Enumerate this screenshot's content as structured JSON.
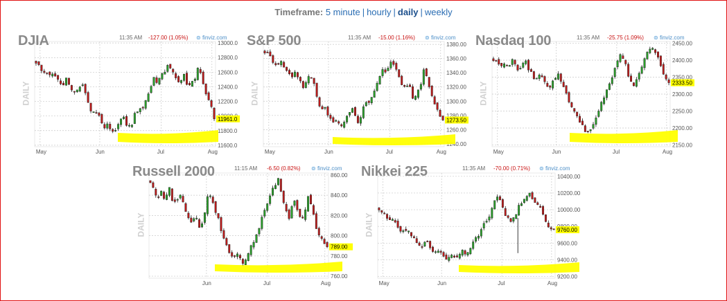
{
  "header": {
    "label": "Timeframe:",
    "options": [
      "5 minute",
      "hourly",
      "daily",
      "weekly"
    ],
    "active": "daily"
  },
  "colors": {
    "up": "#2aa52a",
    "down": "#c41a1a",
    "highlight": "#ffff00",
    "change": "#c81010",
    "brand": "#4d8fc7"
  },
  "panels": [
    {
      "title": "DJIA",
      "time": "11:35 AM",
      "change": "-127.00 (1.05%)",
      "brand": "finviz.com",
      "side": "DAILY",
      "last": "11961.0"
    },
    {
      "title": "S&P 500",
      "time": "11:35 AM",
      "change": "-15.00 (1.16%)",
      "brand": "finviz.com",
      "side": "DAILY",
      "last": "1273.50"
    },
    {
      "title": "Nasdaq 100",
      "time": "11:35 AM",
      "change": "-25.75 (1.09%)",
      "brand": "finviz.com",
      "side": "DAILY",
      "last": "2333.50"
    },
    {
      "title": "Russell 2000",
      "time": "11:15 AM",
      "change": "-6.50 (0.82%)",
      "brand": "finviz.com",
      "side": "DAILY",
      "last": "789.00"
    },
    {
      "title": "Nikkei 225",
      "time": "11:35 AM",
      "change": "-70.00 (0.71%)",
      "brand": "finviz.com",
      "side": "DAILY",
      "last": "9760.00"
    }
  ],
  "chart_data": [
    {
      "type": "candlestick",
      "title": "DJIA",
      "ylim": [
        11580,
        13020
      ],
      "yticks": [
        11600,
        11800,
        12000,
        12200,
        12400,
        12600,
        12800,
        13000
      ],
      "ytick_labels": [
        "11600.0",
        "11800.0",
        "12000.0",
        "12200.0",
        "12400.0",
        "12600.0",
        "12800.0",
        "13000.0"
      ],
      "months": [
        {
          "label": "May",
          "frac": 0.03
        },
        {
          "label": "Jun",
          "frac": 0.36
        },
        {
          "label": "Jul",
          "frac": 0.7
        },
        {
          "label": "Aug",
          "frac": 0.98
        }
      ],
      "n": 66,
      "last": 11961,
      "close_path": [
        12700,
        12670,
        12610,
        12560,
        12600,
        12550,
        12480,
        12430,
        12500,
        12410,
        12320,
        12380,
        12450,
        12330,
        12150,
        12030,
        12070,
        11940,
        11850,
        11900,
        11770,
        11800,
        11960,
        12010,
        11880,
        11820,
        12030,
        12060,
        12100,
        12230,
        12350,
        12520,
        12450,
        12590,
        12620,
        12710,
        12640,
        12490,
        12420,
        12560,
        12370,
        12460,
        12510,
        12690,
        12470,
        12290,
        12180,
        11961
      ]
    },
    {
      "type": "candlestick",
      "title": "S&P 500",
      "ylim": [
        1236,
        1384
      ],
      "yticks": [
        1240,
        1260,
        1280,
        1300,
        1320,
        1340,
        1360,
        1380
      ],
      "ytick_labels": [
        "1240.00",
        "1260.00",
        "1280.00",
        "1300.00",
        "1320.00",
        "1340.00",
        "1360.00",
        "1380.00"
      ],
      "months": [
        {
          "label": "May",
          "frac": 0.03
        },
        {
          "label": "Jun",
          "frac": 0.36
        },
        {
          "label": "Jul",
          "frac": 0.7
        },
        {
          "label": "Aug",
          "frac": 0.98
        }
      ],
      "n": 66,
      "last": 1273.5,
      "close_path": [
        1370,
        1366,
        1358,
        1352,
        1357,
        1350,
        1341,
        1334,
        1342,
        1333,
        1320,
        1326,
        1338,
        1324,
        1302,
        1288,
        1292,
        1278,
        1269,
        1274,
        1265,
        1268,
        1285,
        1290,
        1276,
        1270,
        1294,
        1298,
        1300,
        1315,
        1328,
        1348,
        1340,
        1356,
        1352,
        1342,
        1325,
        1318,
        1328,
        1303,
        1312,
        1320,
        1345,
        1330,
        1310,
        1295,
        1280,
        1273.5
      ]
    },
    {
      "type": "candlestick",
      "title": "Nasdaq 100",
      "ylim": [
        2145,
        2455
      ],
      "yticks": [
        2150,
        2200,
        2250,
        2300,
        2350,
        2400,
        2450
      ],
      "ytick_labels": [
        "2150.00",
        "2200.00",
        "2250.00",
        "2300.00",
        "2350.00",
        "2400.00",
        "2450.00"
      ],
      "months": [
        {
          "label": "May",
          "frac": 0.03
        },
        {
          "label": "Jun",
          "frac": 0.36
        },
        {
          "label": "Jul",
          "frac": 0.7
        },
        {
          "label": "Aug",
          "frac": 0.98
        }
      ],
      "n": 66,
      "last": 2333.5,
      "close_path": [
        2400,
        2395,
        2380,
        2392,
        2388,
        2400,
        2375,
        2380,
        2395,
        2372,
        2350,
        2345,
        2360,
        2335,
        2320,
        2338,
        2360,
        2340,
        2310,
        2280,
        2255,
        2230,
        2215,
        2195,
        2185,
        2205,
        2235,
        2270,
        2300,
        2330,
        2355,
        2390,
        2420,
        2395,
        2345,
        2320,
        2350,
        2375,
        2410,
        2425,
        2440,
        2420,
        2385,
        2350,
        2333.5
      ]
    },
    {
      "type": "candlestick",
      "title": "Russell 2000",
      "ylim": [
        758,
        862
      ],
      "yticks": [
        760,
        780,
        800,
        820,
        840,
        860
      ],
      "ytick_labels": [
        "760.00",
        "780.00",
        "800.00",
        "820.00",
        "840.00",
        "860.00"
      ],
      "months": [
        {
          "label": "Jun",
          "frac": 0.32
        },
        {
          "label": "Jul",
          "frac": 0.66
        },
        {
          "label": "Aug",
          "frac": 0.98
        }
      ],
      "n": 66,
      "last": 789,
      "close_path": [
        852,
        845,
        838,
        843,
        836,
        848,
        832,
        835,
        841,
        828,
        818,
        812,
        822,
        808,
        814,
        836,
        842,
        828,
        818,
        802,
        792,
        782,
        776,
        782,
        778,
        772,
        783,
        790,
        800,
        810,
        822,
        830,
        842,
        850,
        855,
        842,
        825,
        818,
        835,
        828,
        816,
        822,
        838,
        826,
        808,
        800,
        794,
        789
      ]
    },
    {
      "type": "candlestick",
      "title": "Nikkei 225",
      "ylim": [
        9180,
        10440
      ],
      "yticks": [
        9200,
        9400,
        9600,
        9800,
        10000,
        10200,
        10400
      ],
      "ytick_labels": [
        "9200.00",
        "9400.00",
        "9600.00",
        "9800.00",
        "10000.00",
        "10200.00",
        "10400.00"
      ],
      "months": [
        {
          "label": "May",
          "frac": 0.03
        },
        {
          "label": "Jun",
          "frac": 0.36
        },
        {
          "label": "Jul",
          "frac": 0.7
        },
        {
          "label": "Aug",
          "frac": 0.98
        }
      ],
      "n": 66,
      "last": 9760,
      "close_path": [
        9980,
        9960,
        9920,
        9880,
        9830,
        9780,
        9720,
        9760,
        9690,
        9630,
        9600,
        9570,
        9610,
        9540,
        9490,
        9520,
        9460,
        9420,
        9450,
        9430,
        9470,
        9510,
        9480,
        9560,
        9620,
        9700,
        9780,
        9870,
        9960,
        10080,
        10180,
        10050,
        9920,
        9860,
        9900,
        10020,
        10080,
        10140,
        10180,
        10120,
        10060,
        9980,
        9860,
        9790,
        9760
      ],
      "spike": {
        "frac": 0.79,
        "low": 9480
      }
    }
  ]
}
